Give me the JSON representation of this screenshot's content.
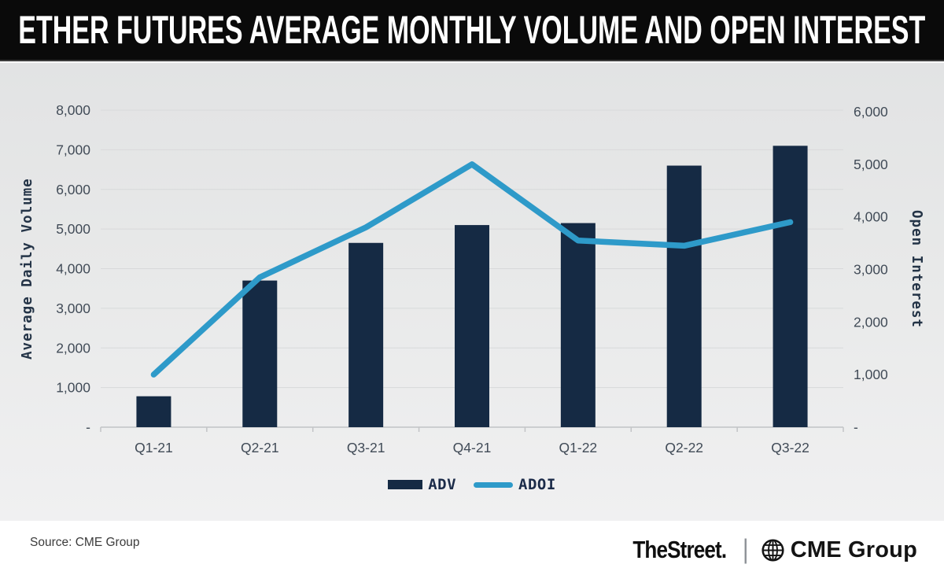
{
  "title": "ETHER FUTURES AVERAGE MONTHLY VOLUME AND OPEN INTEREST",
  "chart_data": {
    "type": "bar",
    "subtype": "combo-bar-line-dual-axis",
    "categories": [
      "Q1-21",
      "Q2-21",
      "Q3-21",
      "Q4-21",
      "Q1-22",
      "Q2-22",
      "Q3-22"
    ],
    "series": [
      {
        "name": "ADV",
        "type": "bar",
        "axis": "left",
        "color": "#152a44",
        "values": [
          780,
          3700,
          4650,
          5100,
          5150,
          6600,
          7100
        ]
      },
      {
        "name": "ADOI",
        "type": "line",
        "axis": "right",
        "color": "#2e9ac9",
        "values": [
          1000,
          2850,
          3800,
          5000,
          3550,
          3450,
          3900
        ]
      }
    ],
    "left_axis": {
      "label": "Average Daily Volume",
      "min": 0,
      "max": 8000,
      "tick_step": 1000,
      "ticks": [
        "8,000",
        "7,000",
        "6,000",
        "5,000",
        "4,000",
        "3,000",
        "2,000",
        "1,000",
        "-"
      ]
    },
    "right_axis": {
      "label": "Open Interest",
      "min": 0,
      "max": 6000,
      "tick_step": 1000,
      "ticks": [
        "6,000",
        "5,000",
        "4,000",
        "3,000",
        "2,000",
        "1,000",
        "-"
      ]
    },
    "grid": "horizontal",
    "legend_position": "bottom"
  },
  "legend": {
    "items": [
      {
        "label": "ADV",
        "swatch": "bar"
      },
      {
        "label": "ADOI",
        "swatch": "line"
      }
    ]
  },
  "footer": {
    "source": "Source: CME Group",
    "brand_left": "TheStreet.",
    "separator": "|",
    "brand_right": "CME Group"
  },
  "colors": {
    "banner_bg": "#0a0a0a",
    "title_text": "#ffffff",
    "panel_bg": "#e8e9e9",
    "bar": "#152a44",
    "line": "#2e9ac9",
    "gridline": "#d8d9da",
    "axis_line": "#c2c4c6",
    "tick_text": "#414b57",
    "axis_title_text": "#243447",
    "legend_text": "#1b2b49"
  }
}
